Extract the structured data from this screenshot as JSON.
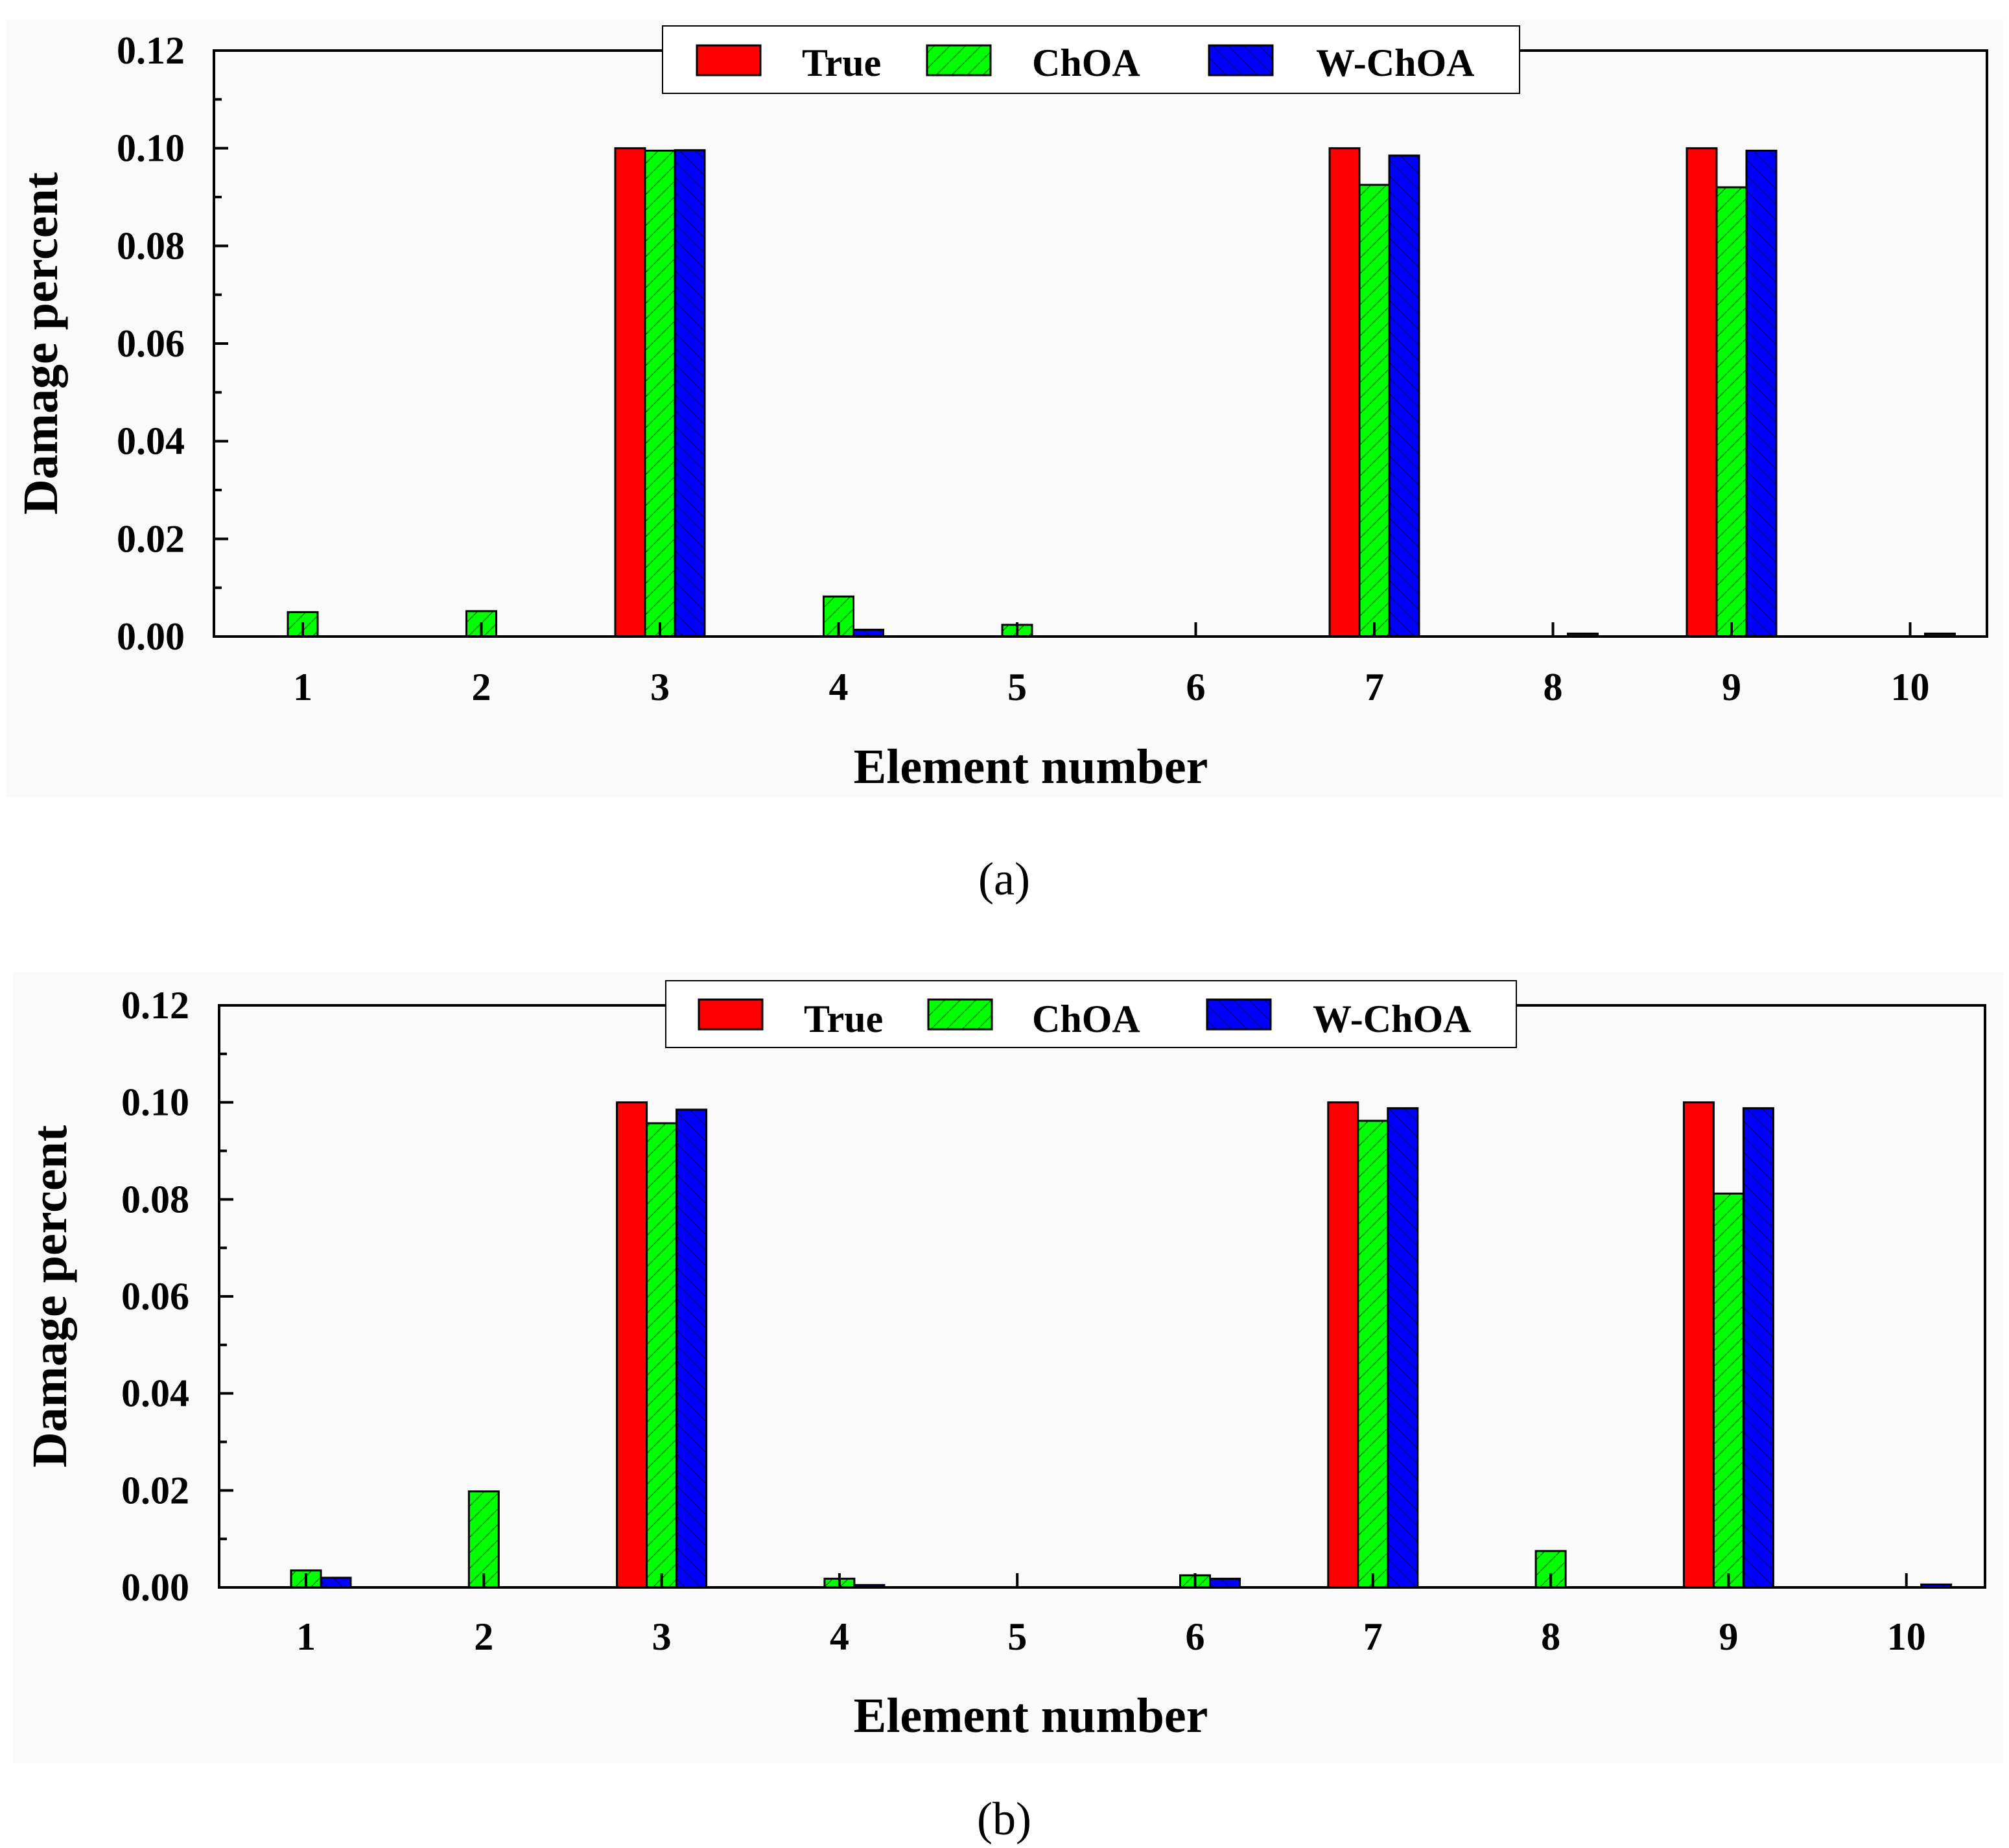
{
  "colors": {
    "True": "#ff0000",
    "ChOA": "#00ff00",
    "W-ChOA": "#0000ff"
  },
  "chart_data": [
    {
      "type": "bar",
      "caption": "(a)",
      "xlabel": "Element number",
      "ylabel": "Damage percent",
      "categories": [
        "1",
        "2",
        "3",
        "4",
        "5",
        "6",
        "7",
        "8",
        "9",
        "10"
      ],
      "ylim": [
        0,
        0.12
      ],
      "yticks": [
        "0.00",
        "0.02",
        "0.04",
        "0.06",
        "0.08",
        "0.10",
        "0.12"
      ],
      "legend_position": "top-center",
      "series": [
        {
          "name": "True",
          "values": [
            0,
            0,
            0.1,
            0,
            0,
            0,
            0.1,
            0,
            0.1,
            0
          ]
        },
        {
          "name": "ChOA",
          "values": [
            0.005,
            0.0052,
            0.0995,
            0.0082,
            0.0024,
            0,
            0.0925,
            0,
            0.092,
            0
          ]
        },
        {
          "name": "W-ChOA",
          "values": [
            0,
            0,
            0.0996,
            0.0014,
            0,
            0,
            0.0985,
            0.0006,
            0.0995,
            0.0006
          ]
        }
      ]
    },
    {
      "type": "bar",
      "caption": "(b)",
      "xlabel": "Element number",
      "ylabel": "Damage percent",
      "categories": [
        "1",
        "2",
        "3",
        "4",
        "5",
        "6",
        "7",
        "8",
        "9",
        "10"
      ],
      "ylim": [
        0,
        0.12
      ],
      "yticks": [
        "0.00",
        "0.02",
        "0.04",
        "0.06",
        "0.08",
        "0.10",
        "0.12"
      ],
      "legend_position": "top-center",
      "series": [
        {
          "name": "True",
          "values": [
            0,
            0,
            0.1,
            0,
            0,
            0,
            0.1,
            0,
            0.1,
            0
          ]
        },
        {
          "name": "ChOA",
          "values": [
            0.0035,
            0.0198,
            0.0957,
            0.0018,
            0,
            0.0025,
            0.0962,
            0.0075,
            0.0812,
            0
          ]
        },
        {
          "name": "W-ChOA",
          "values": [
            0.002,
            0,
            0.0985,
            0.0005,
            0,
            0.0018,
            0.0988,
            0,
            0.0988,
            0.0006
          ]
        }
      ]
    }
  ]
}
